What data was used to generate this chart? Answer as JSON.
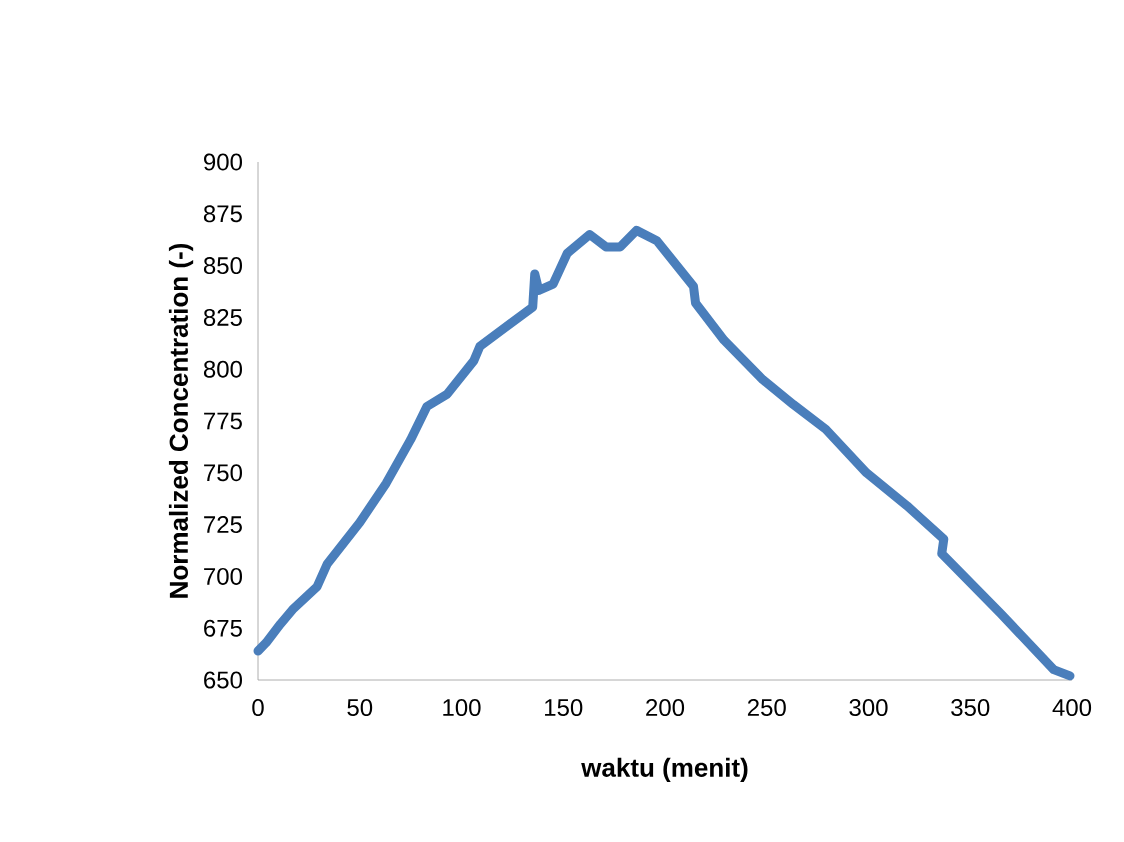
{
  "chart_data": {
    "type": "line",
    "xlabel": "waktu (menit)",
    "ylabel": "Normalized Concentration (-)",
    "xlim": [
      0,
      400
    ],
    "xticks": [
      0,
      50,
      100,
      150,
      200,
      250,
      300,
      350,
      400
    ],
    "ylim": [
      650,
      900
    ],
    "yticks": [
      650,
      675,
      700,
      725,
      750,
      775,
      800,
      825,
      850,
      875,
      900
    ],
    "grid": false,
    "marker": "none",
    "line_style": "solid",
    "series": [
      {
        "color": "#4a7ebb",
        "x": [
          0,
          4,
          11,
          17,
          29,
          34,
          50,
          63,
          75,
          83,
          93,
          106,
          109,
          135,
          136,
          138,
          145,
          152,
          163,
          171,
          178,
          186,
          196,
          214,
          215,
          229,
          248,
          263,
          279,
          299,
          319,
          337,
          336,
          365,
          391,
          399
        ],
        "values": [
          664,
          668,
          677,
          684,
          695,
          706,
          726,
          745,
          766,
          782,
          788,
          804,
          811,
          830,
          846,
          838,
          841,
          856,
          865,
          859,
          859,
          867,
          862,
          840,
          832,
          814,
          795,
          783,
          771,
          750,
          734,
          718,
          711,
          682,
          655,
          652
        ]
      }
    ]
  }
}
